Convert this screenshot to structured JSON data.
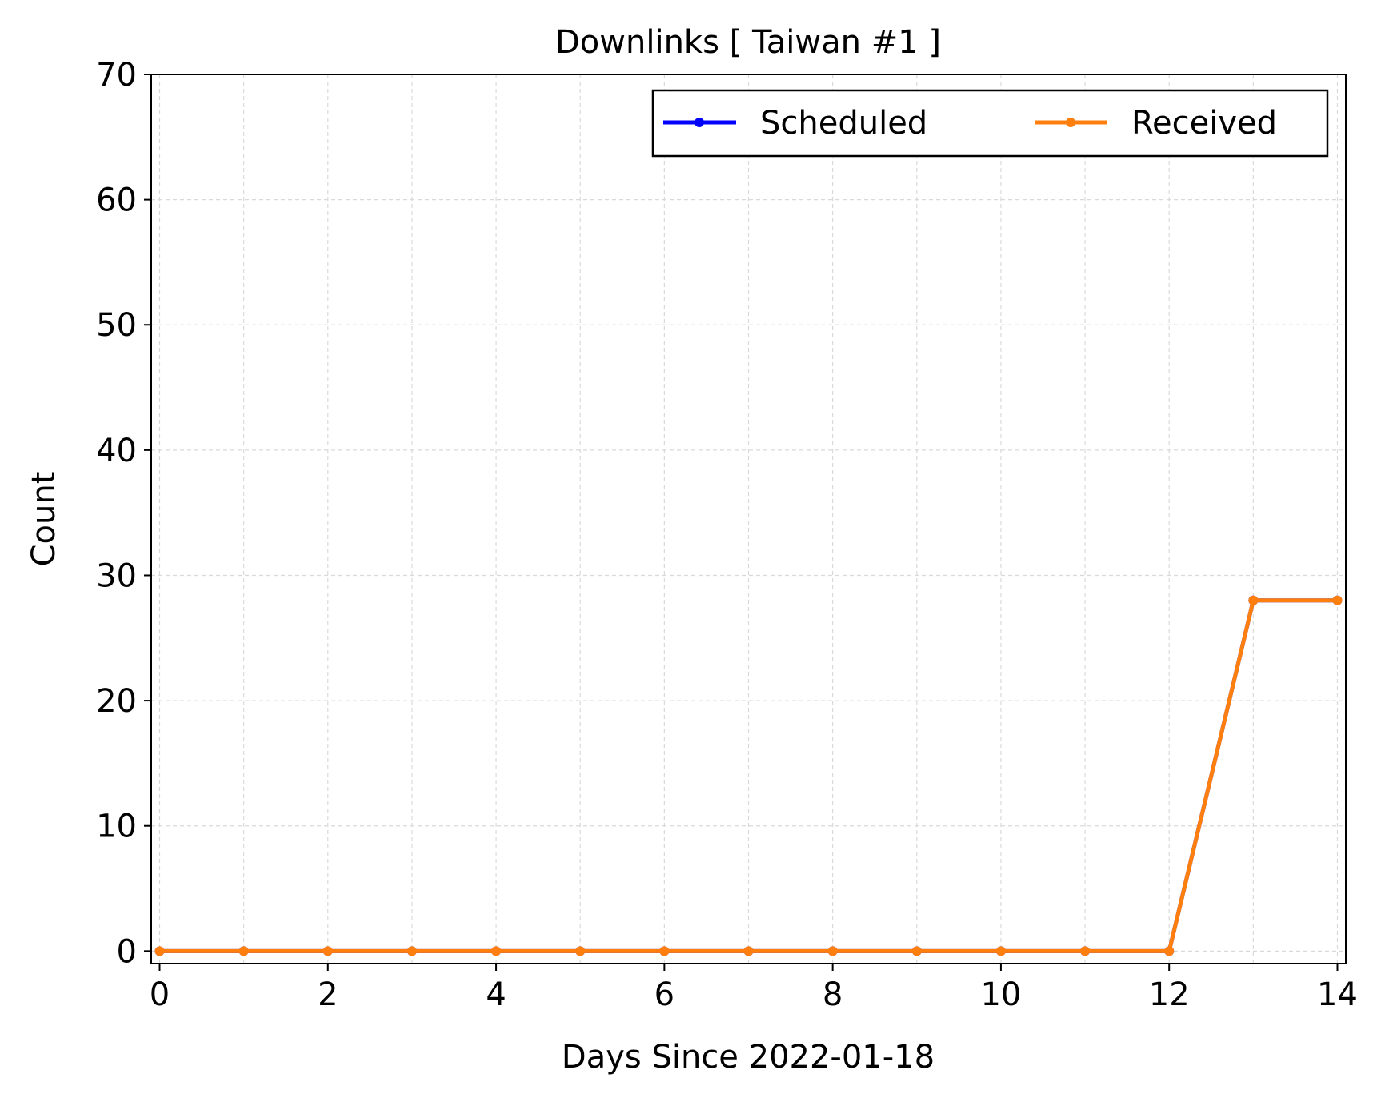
{
  "chart_data": {
    "type": "line",
    "title": "Downlinks [ Taiwan #1 ]",
    "xlabel": "Days Since 2022-01-18",
    "ylabel": "Count",
    "xlim": [
      -0.1,
      14.1
    ],
    "ylim": [
      -1,
      70
    ],
    "xticks": [
      0,
      2,
      4,
      6,
      8,
      10,
      12,
      14
    ],
    "yticks": [
      0,
      10,
      20,
      30,
      40,
      50,
      60,
      70
    ],
    "grid": true,
    "legend_position": "top-right",
    "x": [
      0,
      1,
      2,
      3,
      4,
      5,
      6,
      7,
      8,
      9,
      10,
      11,
      12,
      13,
      14
    ],
    "series": [
      {
        "name": "Scheduled",
        "color": "#0000ff",
        "values": [
          0,
          0,
          0,
          0,
          0,
          0,
          0,
          0,
          0,
          0,
          0,
          0,
          0,
          28,
          28
        ]
      },
      {
        "name": "Received",
        "color": "#ff7f0e",
        "values": [
          0,
          0,
          0,
          0,
          0,
          0,
          0,
          0,
          0,
          0,
          0,
          0,
          0,
          28,
          28
        ]
      }
    ]
  }
}
